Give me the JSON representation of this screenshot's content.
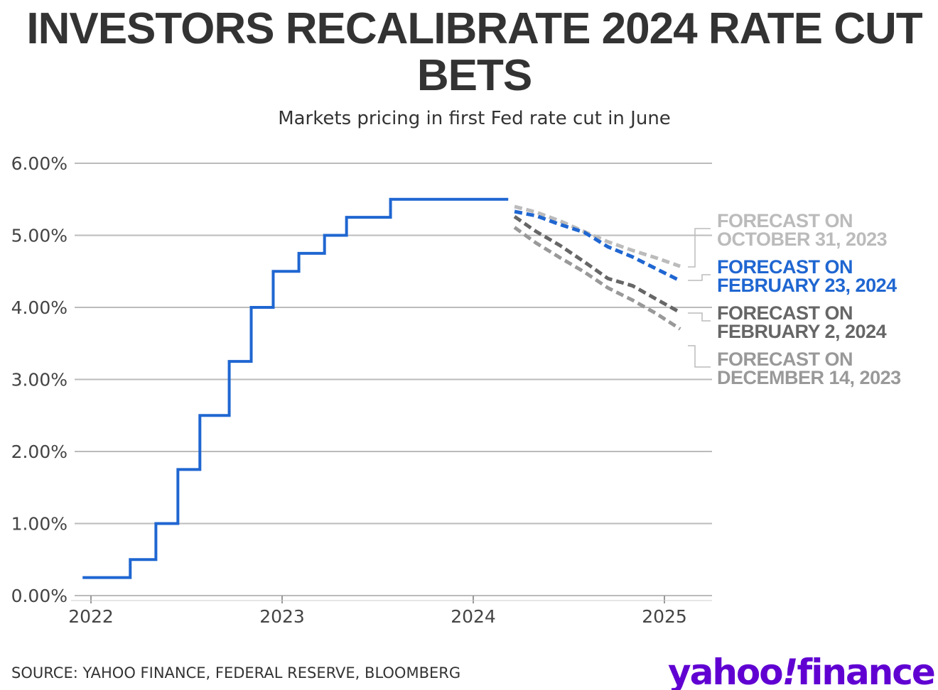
{
  "chart_data": {
    "type": "line",
    "title": "INVESTORS RECALIBRATE 2024 RATE CUT BETS",
    "subtitle": "Markets pricing in first Fed rate cut in June",
    "xlabel": "",
    "ylabel": "",
    "ylim": [
      0,
      6
    ],
    "yticks": [
      "0.00%",
      "1.00%",
      "2.00%",
      "3.00%",
      "4.00%",
      "5.00%",
      "6.00%"
    ],
    "xticks": [
      "2022",
      "2023",
      "2024",
      "2025"
    ],
    "grid": "horizontal",
    "fed_rate": {
      "style": "step",
      "color": "#1f66d1",
      "x": [
        "2021-12-16",
        "2022-03-17",
        "2022-05-05",
        "2022-06-16",
        "2022-07-28",
        "2022-09-22",
        "2022-11-03",
        "2022-12-15",
        "2023-02-02",
        "2023-03-23",
        "2023-05-04",
        "2023-07-27",
        "2024-03-08"
      ],
      "y": [
        0.25,
        0.5,
        1.0,
        1.75,
        2.5,
        3.25,
        4.0,
        4.5,
        4.75,
        5.0,
        5.25,
        5.5,
        5.5
      ]
    },
    "forecast_x": [
      "2024-03-20",
      "2024-05-01",
      "2024-06-15",
      "2024-08-01",
      "2024-09-15",
      "2024-11-01",
      "2024-12-15",
      "2025-01-31"
    ],
    "series": [
      {
        "name": "FORECAST ON OCTOBER 31, 2023",
        "line1": "FORECAST ON",
        "line2": "OCTOBER 31, 2023",
        "color": "#bbbbbb",
        "values": [
          5.4,
          5.32,
          5.2,
          5.05,
          4.91,
          4.79,
          4.69,
          4.57
        ]
      },
      {
        "name": "FORECAST ON FEBRUARY 23, 2024",
        "line1": "FORECAST ON",
        "line2": "FEBRUARY 23, 2024",
        "color": "#1f66d1",
        "values": [
          5.33,
          5.27,
          5.15,
          5.04,
          4.84,
          4.7,
          4.54,
          4.37
        ]
      },
      {
        "name": "FORECAST ON FEBRUARY 2, 2024",
        "line1": "FORECAST ON",
        "line2": "FEBRUARY 2, 2024",
        "color": "#666666",
        "values": [
          5.26,
          5.05,
          4.86,
          4.63,
          4.4,
          4.3,
          4.12,
          3.93
        ]
      },
      {
        "name": "FORECAST ON DECEMBER 14, 2023",
        "line1": "FORECAST ON",
        "line2": "DECEMBER 14, 2023",
        "color": "#999999",
        "values": [
          5.11,
          4.89,
          4.69,
          4.49,
          4.27,
          4.1,
          3.92,
          3.7
        ]
      }
    ]
  },
  "footer": {
    "source": "SOURCE: YAHOO FINANCE, FEDERAL RESERVE, BLOOMBERG",
    "logo": "yahoo!finance",
    "logo_color": "#6001d2"
  }
}
